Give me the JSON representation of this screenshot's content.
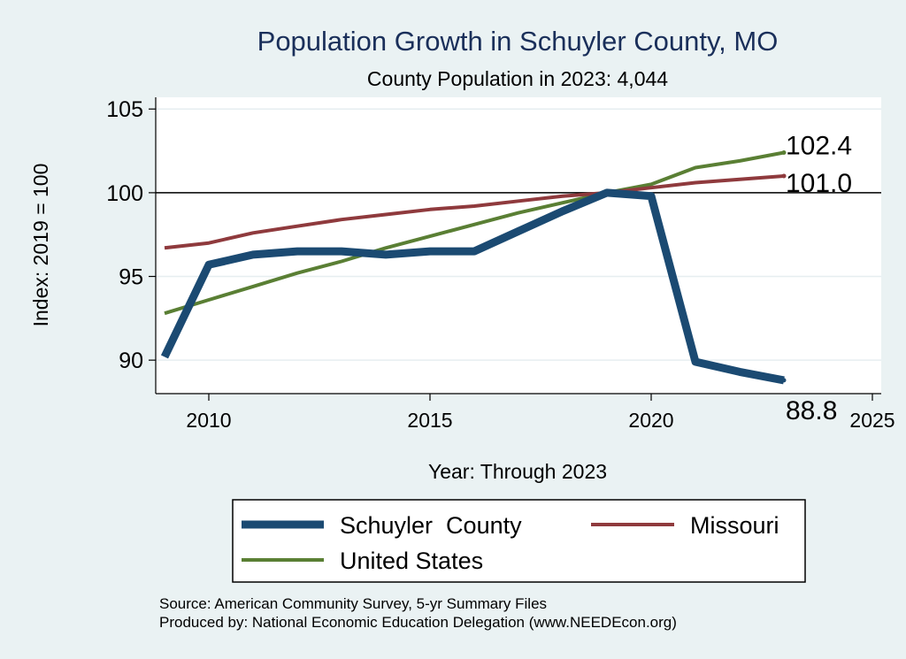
{
  "chart_data": {
    "type": "line",
    "title": "Population Growth in Schuyler County, MO",
    "subtitle": "County Population in 2023: 4,044",
    "xlabel": "Year: Through 2023",
    "ylabel": "Index: 2019 = 100",
    "xlim": [
      2008.8,
      2025.2
    ],
    "ylim": [
      88,
      105.7
    ],
    "xticks": [
      2010,
      2015,
      2020,
      2025
    ],
    "yticks": [
      90,
      95,
      100,
      105
    ],
    "reference_line": 100,
    "x": [
      2009,
      2010,
      2011,
      2012,
      2013,
      2014,
      2015,
      2016,
      2017,
      2018,
      2019,
      2020,
      2021,
      2022,
      2023
    ],
    "series": [
      {
        "name": "Schuyler  County",
        "color": "#1b4a72",
        "width": 9,
        "values": [
          90.2,
          95.7,
          96.3,
          96.5,
          96.5,
          96.3,
          96.5,
          96.5,
          97.7,
          98.9,
          100.0,
          99.8,
          89.9,
          89.3,
          88.8
        ],
        "end_label": "88.8"
      },
      {
        "name": "Missouri",
        "color": "#8f3a3d",
        "width": 4,
        "values": [
          96.7,
          97.0,
          97.6,
          98.0,
          98.4,
          98.7,
          99.0,
          99.2,
          99.5,
          99.8,
          100.0,
          100.3,
          100.6,
          100.8,
          101.0
        ],
        "end_label": "101.0"
      },
      {
        "name": "United States",
        "color": "#5a7f34",
        "width": 4,
        "values": [
          92.8,
          93.6,
          94.4,
          95.2,
          95.9,
          96.7,
          97.4,
          98.1,
          98.8,
          99.4,
          100.0,
          100.5,
          101.5,
          101.9,
          102.4
        ],
        "end_label": "102.4"
      }
    ],
    "legend": {
      "position": "bottom",
      "items": [
        "Schuyler  County",
        "Missouri",
        "United States"
      ]
    },
    "source_lines": [
      "Source: American Community Survey, 5-yr Summary Files",
      "Produced by: National Economic Education Delegation (www.NEEDEcon.org)"
    ]
  }
}
